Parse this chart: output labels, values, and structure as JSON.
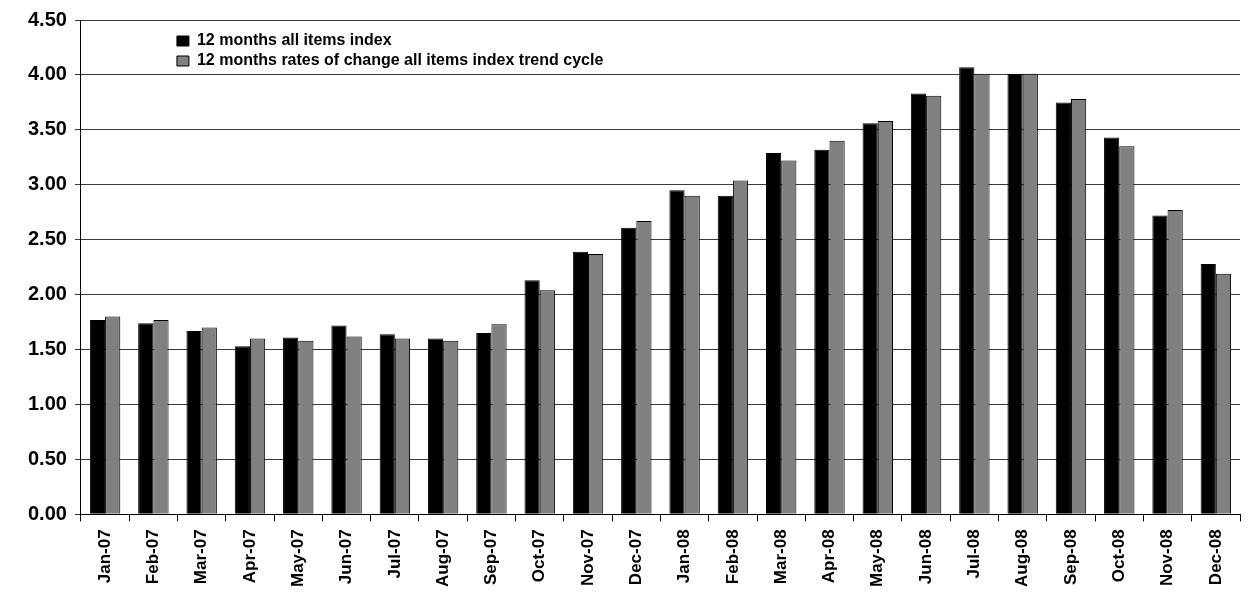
{
  "chart_data": {
    "type": "bar",
    "categories": [
      "Jan-07",
      "Feb-07",
      "Mar-07",
      "Apr-07",
      "May-07",
      "Jun-07",
      "Jul-07",
      "Aug-07",
      "Sep-07",
      "Oct-07",
      "Nov-07",
      "Dec-07",
      "Jan-08",
      "Feb-08",
      "Mar-08",
      "Apr-08",
      "May-08",
      "Jun-08",
      "Jul-08",
      "Aug-08",
      "Sep-08",
      "Oct-08",
      "Nov-08",
      "Dec-08"
    ],
    "series": [
      {
        "name": "12 months all items index",
        "color": "#000000",
        "values": [
          1.77,
          1.74,
          1.67,
          1.53,
          1.61,
          1.72,
          1.64,
          1.6,
          1.65,
          2.13,
          2.39,
          2.61,
          2.95,
          2.9,
          3.29,
          3.32,
          3.56,
          3.83,
          4.07,
          4.01,
          3.75,
          3.43,
          2.72,
          2.28
        ]
      },
      {
        "name": "12 months rates of change all items index trend cycle",
        "color": "#808080",
        "values": [
          1.8,
          1.77,
          1.7,
          1.6,
          1.58,
          1.62,
          1.6,
          1.58,
          1.73,
          2.04,
          2.37,
          2.67,
          2.9,
          3.04,
          3.22,
          3.4,
          3.58,
          3.81,
          4.01,
          4.01,
          3.78,
          3.35,
          2.77,
          2.19
        ]
      }
    ],
    "ylim": [
      0,
      4.5
    ],
    "yticks": [
      {
        "value": 0,
        "label": "0.00"
      },
      {
        "value": 0.5,
        "label": "0.50"
      },
      {
        "value": 1,
        "label": "1.00"
      },
      {
        "value": 1.5,
        "label": "1.50"
      },
      {
        "value": 2,
        "label": "2.00"
      },
      {
        "value": 2.5,
        "label": "2.50"
      },
      {
        "value": 3,
        "label": "3.00"
      },
      {
        "value": 3.5,
        "label": "3.50"
      },
      {
        "value": 4,
        "label": "4.00"
      },
      {
        "value": 4.5,
        "label": "4.50"
      }
    ],
    "grid": "y",
    "legend": "top left"
  }
}
